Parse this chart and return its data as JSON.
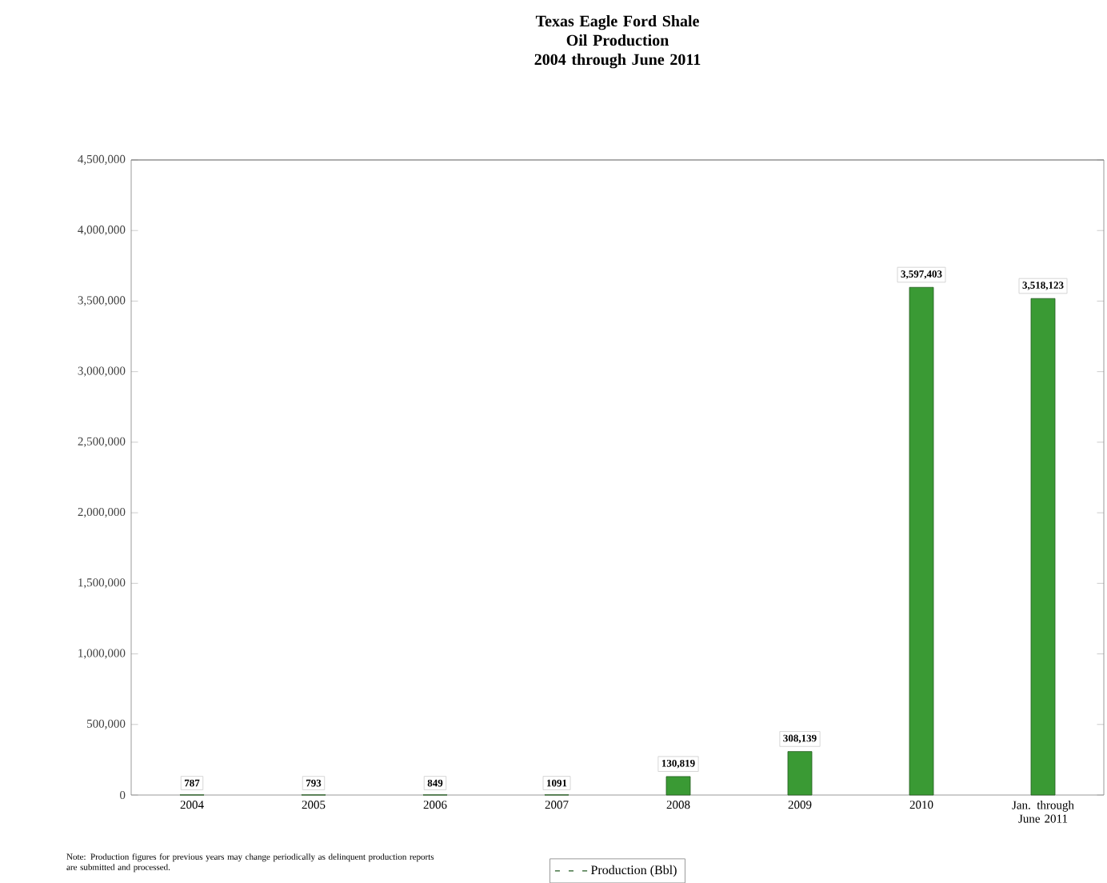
{
  "chart_data": {
    "type": "bar",
    "title": "Texas Eagle Ford Shale\nOil Production\n2004 through June 2011",
    "categories": [
      "2004",
      "2005",
      "2006",
      "2007",
      "2008",
      "2009",
      "2010",
      "Jan. through June 2011"
    ],
    "series": [
      {
        "name": "Production  (Bbl)",
        "color": "#3a9a34",
        "values": [
          787,
          793,
          849,
          1091,
          130819,
          308139,
          3597403,
          3518123
        ],
        "value_labels": [
          "787",
          "793",
          "849",
          "1091",
          "130,819",
          "308,139",
          "3,597,403",
          "3,518,123"
        ]
      }
    ],
    "ylim": [
      0,
      4500000
    ],
    "yticks": [
      {
        "value": 0,
        "label": "0"
      },
      {
        "value": 500000,
        "label": "500,000"
      },
      {
        "value": 1000000,
        "label": "1,000,000"
      },
      {
        "value": 1500000,
        "label": "1,500,000"
      },
      {
        "value": 2000000,
        "label": "2,000,000"
      },
      {
        "value": 2500000,
        "label": "2,500,000"
      },
      {
        "value": 3000000,
        "label": "3,000,000"
      },
      {
        "value": 3500000,
        "label": "3,500,000"
      },
      {
        "value": 4000000,
        "label": "4,000,000"
      },
      {
        "value": 4500000,
        "label": "4,500,000"
      }
    ],
    "legend": "bottom",
    "grid": false,
    "annotations": [
      "Note: Production figures for previous years may change periodically as delinquent production reports are submitted and processed."
    ]
  }
}
